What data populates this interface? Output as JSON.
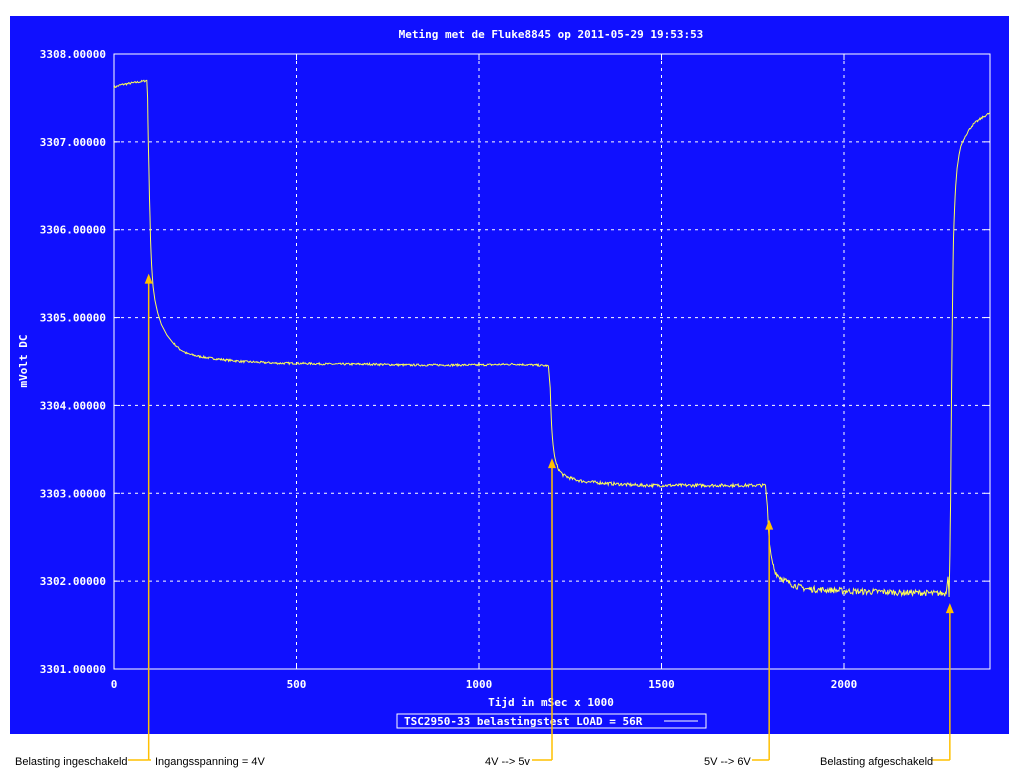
{
  "chart_data": {
    "type": "line",
    "title": "Meting met de Fluke8845 op 2011-05-29 19:53:53",
    "xlabel": "Tijd in mSec x 1000",
    "ylabel": "mVolt DC",
    "xlim": [
      0,
      2400
    ],
    "ylim": [
      3301.0,
      3308.0
    ],
    "x_ticks": [
      "0",
      "500",
      "1000",
      "1500",
      "2000"
    ],
    "x_tick_values": [
      0,
      500,
      1000,
      1500,
      2000
    ],
    "y_ticks": [
      "3301.00000",
      "3302.00000",
      "3303.00000",
      "3304.00000",
      "3305.00000",
      "3306.00000",
      "3307.00000",
      "3308.00000"
    ],
    "y_tick_values": [
      3301,
      3302,
      3303,
      3304,
      3305,
      3306,
      3307,
      3308
    ],
    "grid": true,
    "legend": {
      "position": "bottom-center",
      "entries": [
        "TSC2950-33 belastingstest LOAD = 56R"
      ]
    },
    "background_color": "#1010ff",
    "line_color": "#ffff55",
    "annotation_color": "#ffc000",
    "series": [
      {
        "name": "TSC2950-33 belastingstest LOAD = 56R",
        "x": [
          0,
          20,
          50,
          80,
          90,
          92,
          94,
          97,
          100,
          103,
          107,
          112,
          120,
          130,
          145,
          160,
          180,
          200,
          230,
          260,
          300,
          350,
          400,
          450,
          500,
          600,
          700,
          800,
          900,
          1000,
          1100,
          1150,
          1190,
          1195,
          1198,
          1200,
          1203,
          1207,
          1212,
          1220,
          1230,
          1245,
          1260,
          1280,
          1300,
          1330,
          1360,
          1400,
          1450,
          1500,
          1550,
          1600,
          1650,
          1700,
          1750,
          1785,
          1790,
          1793,
          1796,
          1800,
          1805,
          1810,
          1820,
          1830,
          1845,
          1860,
          1880,
          1900,
          1950,
          2000,
          2050,
          2100,
          2150,
          2200,
          2250,
          2280,
          2285,
          2288,
          2290,
          2292,
          2295,
          2298,
          2300,
          2303,
          2306,
          2310,
          2315,
          2320,
          2330,
          2340,
          2350,
          2360,
          2380,
          2400
        ],
        "values": [
          3307.62,
          3307.65,
          3307.67,
          3307.69,
          3307.7,
          3307.5,
          3307.0,
          3306.4,
          3305.9,
          3305.6,
          3305.35,
          3305.2,
          3305.05,
          3304.92,
          3304.8,
          3304.72,
          3304.64,
          3304.59,
          3304.56,
          3304.54,
          3304.52,
          3304.5,
          3304.49,
          3304.48,
          3304.48,
          3304.47,
          3304.47,
          3304.46,
          3304.46,
          3304.46,
          3304.47,
          3304.46,
          3304.45,
          3304.2,
          3303.85,
          3303.7,
          3303.55,
          3303.42,
          3303.33,
          3303.26,
          3303.21,
          3303.18,
          3303.16,
          3303.14,
          3303.13,
          3303.12,
          3303.11,
          3303.1,
          3303.09,
          3303.09,
          3303.09,
          3303.09,
          3303.09,
          3303.09,
          3303.09,
          3303.09,
          3302.85,
          3302.6,
          3302.42,
          3302.3,
          3302.2,
          3302.12,
          3302.06,
          3302.03,
          3301.99,
          3301.96,
          3301.93,
          3301.91,
          3301.9,
          3301.89,
          3301.88,
          3301.88,
          3301.87,
          3301.87,
          3301.86,
          3301.86,
          3302.05,
          3301.82,
          3302.3,
          3302.9,
          3304.3,
          3305.4,
          3305.9,
          3306.25,
          3306.5,
          3306.7,
          3306.85,
          3306.95,
          3307.05,
          3307.12,
          3307.18,
          3307.22,
          3307.28,
          3307.33
        ]
      }
    ],
    "annotations": [
      {
        "label": "Belasting ingeschakeld",
        "x": 95,
        "y": 3305.5
      },
      {
        "label": "Ingangsspanning = 4V",
        "x": 95,
        "y": 3305.5
      },
      {
        "label": "4V --> 5v",
        "x": 1200,
        "y": 3303.4
      },
      {
        "label": "5V --> 6V",
        "x": 1795,
        "y": 3302.7
      },
      {
        "label": "Belasting afgeschakeld",
        "x": 2290,
        "y": 3301.75
      }
    ]
  }
}
